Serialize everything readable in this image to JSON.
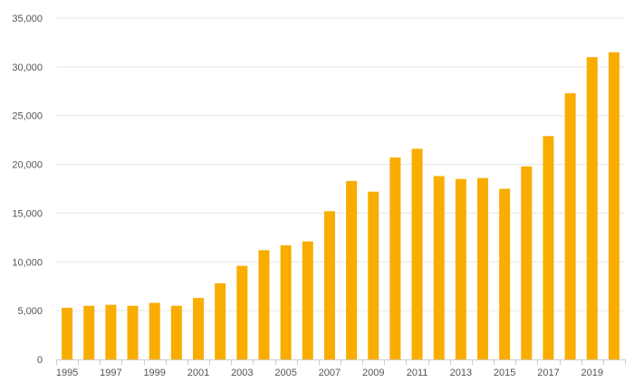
{
  "chart_data": {
    "type": "bar",
    "title": "",
    "xlabel": "",
    "ylabel": "",
    "categories": [
      "1995",
      "1996",
      "1997",
      "1998",
      "1999",
      "2000",
      "2001",
      "2002",
      "2003",
      "2004",
      "2005",
      "2006",
      "2007",
      "2008",
      "2009",
      "2010",
      "2011",
      "2012",
      "2013",
      "2014",
      "2015",
      "2016",
      "2017",
      "2018",
      "2019",
      "2020"
    ],
    "x_tick_labels": [
      "1995",
      "1997",
      "1999",
      "2001",
      "2003",
      "2005",
      "2007",
      "2009",
      "2011",
      "2013",
      "2015",
      "2017",
      "2019"
    ],
    "values": [
      5300,
      5500,
      5600,
      5500,
      5800,
      5500,
      6300,
      7800,
      9600,
      11200,
      11700,
      12100,
      15200,
      18300,
      17200,
      20700,
      21600,
      18800,
      18500,
      18600,
      17500,
      19800,
      22900,
      27300,
      31000,
      31500
    ],
    "ylim": [
      0,
      35000
    ],
    "y_ticks": [
      "0",
      "5,000",
      "10,000",
      "15,000",
      "20,000",
      "25,000",
      "30,000",
      "35,000"
    ],
    "grid": true,
    "legend": "none",
    "bar_color": "#f9ad00"
  }
}
